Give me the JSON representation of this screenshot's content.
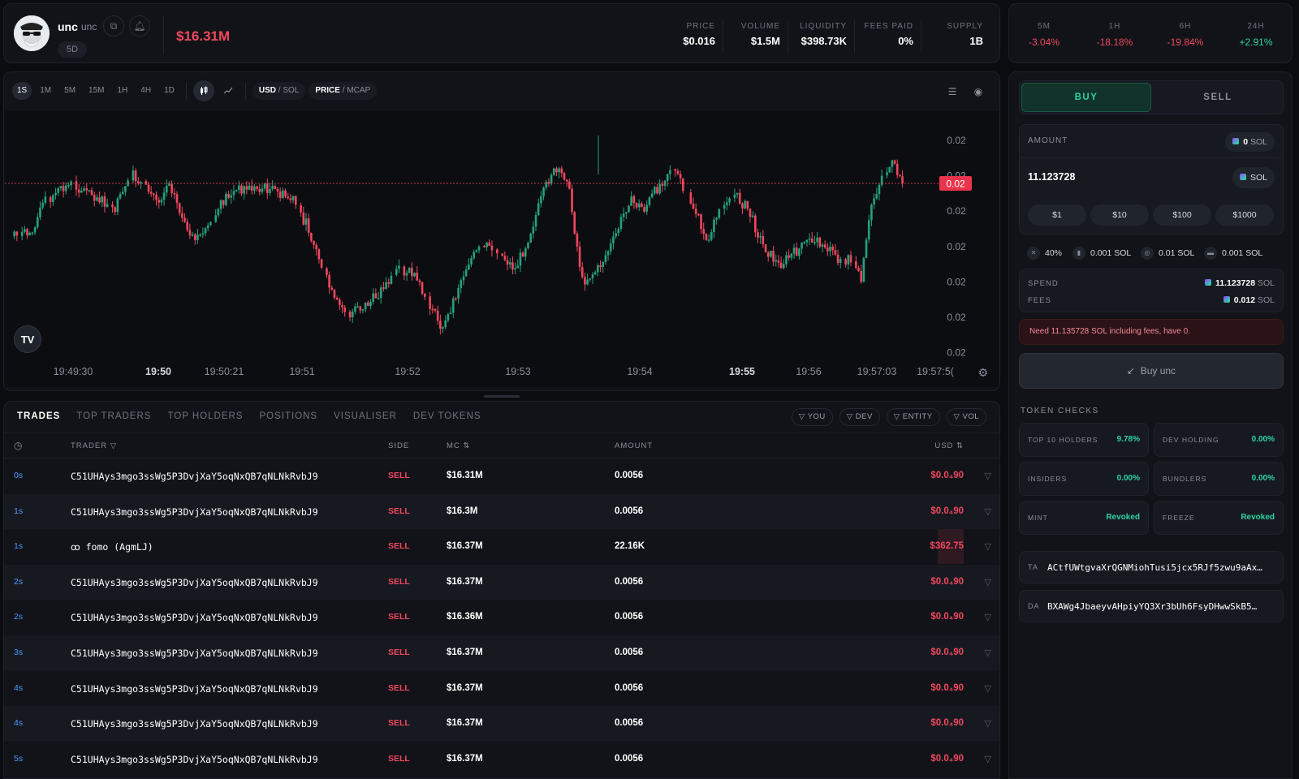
{
  "header": {
    "token_name": "unc",
    "token_ticker": "unc",
    "age": "5D",
    "market_cap": "$16.31M",
    "stats": [
      {
        "label": "PRICE",
        "value": "$0.016"
      },
      {
        "label": "VOLUME",
        "value": "$1.5M"
      },
      {
        "label": "LIQUIDITY",
        "value": "$398.73K"
      },
      {
        "label": "FEES PAID",
        "value": "0%"
      },
      {
        "label": "SUPPLY",
        "value": "1B"
      }
    ]
  },
  "changes": [
    {
      "label": "5M",
      "value": "-3.04%"
    },
    {
      "label": "1H",
      "value": "-18.18%"
    },
    {
      "label": "6H",
      "value": "-19.84%"
    },
    {
      "label": "24H",
      "value": "+2.91%"
    }
  ],
  "toolbar": {
    "timeframes": [
      "1S",
      "1M",
      "5M",
      "15M",
      "1H",
      "4H",
      "1D"
    ],
    "active_timeframe": "1S",
    "currency_active": "USD",
    "currency_alt": "SOL",
    "metric_active": "PRICE",
    "metric_alt": "MCAP"
  },
  "chart_data": {
    "type": "candlestick",
    "title": "",
    "y_tick_labels": [
      "0.02",
      "0.02",
      "0.02",
      "0.02",
      "0.02",
      "0.02",
      "0.02"
    ],
    "current_price_label": "0.02",
    "x_tick_labels": [
      "19:49:30",
      "19:50",
      "19:50:21",
      "19:51",
      "19:52",
      "19:53",
      "19:54",
      "19:55",
      "19:56",
      "19:57:03",
      "19:57:5("
    ],
    "x_bold_ticks": [
      "19:50",
      "19:55"
    ],
    "colors": {
      "up": "#26a17b",
      "down": "#f0475e",
      "price_line": "#f0475e"
    }
  },
  "trades": {
    "tabs": [
      "TRADES",
      "TOP TRADERS",
      "TOP HOLDERS",
      "POSITIONS",
      "VISUALISER",
      "DEV TOKENS"
    ],
    "active_tab": "TRADES",
    "filters": [
      "YOU",
      "DEV",
      "ENTITY",
      "VOL"
    ],
    "columns": {
      "trader": "TRADER",
      "side": "SIDE",
      "mc": "MC",
      "amount": "AMOUNT",
      "usd": "USD"
    },
    "rows": [
      {
        "time": "0s",
        "trader": "C51UHAys3mgo3ssWg5P3DvjXaY5oqNxQB7qNLNkRvbJ9",
        "side": "SELL",
        "mc": "$16.31M",
        "amount": "0.0056",
        "usd": "$0.0₄90"
      },
      {
        "time": "1s",
        "trader": "C51UHAys3mgo3ssWg5P3DvjXaY5oqNxQB7qNLNkRvbJ9",
        "side": "SELL",
        "mc": "$16.3M",
        "amount": "0.0056",
        "usd": "$0.0₄90"
      },
      {
        "time": "1s",
        "trader": "ꝏ fomo (AgmLJ)",
        "side": "SELL",
        "mc": "$16.37M",
        "amount": "22.16K",
        "usd": "$362.75"
      },
      {
        "time": "2s",
        "trader": "C51UHAys3mgo3ssWg5P3DvjXaY5oqNxQB7qNLNkRvbJ9",
        "side": "SELL",
        "mc": "$16.37M",
        "amount": "0.0056",
        "usd": "$0.0₄90"
      },
      {
        "time": "2s",
        "trader": "C51UHAys3mgo3ssWg5P3DvjXaY5oqNxQB7qNLNkRvbJ9",
        "side": "SELL",
        "mc": "$16.36M",
        "amount": "0.0056",
        "usd": "$0.0₄90"
      },
      {
        "time": "3s",
        "trader": "C51UHAys3mgo3ssWg5P3DvjXaY5oqNxQB7qNLNkRvbJ9",
        "side": "SELL",
        "mc": "$16.37M",
        "amount": "0.0056",
        "usd": "$0.0₄90"
      },
      {
        "time": "4s",
        "trader": "C51UHAys3mgo3ssWg5P3DvjXaY5oqNxQB7qNLNkRvbJ9",
        "side": "SELL",
        "mc": "$16.37M",
        "amount": "0.0056",
        "usd": "$0.0₄90"
      },
      {
        "time": "4s",
        "trader": "C51UHAys3mgo3ssWg5P3DvjXaY5oqNxQB7qNLNkRvbJ9",
        "side": "SELL",
        "mc": "$16.37M",
        "amount": "0.0056",
        "usd": "$0.0₄90"
      },
      {
        "time": "5s",
        "trader": "C51UHAys3mgo3ssWg5P3DvjXaY5oqNxQB7qNLNkRvbJ9",
        "side": "SELL",
        "mc": "$16.37M",
        "amount": "0.0056",
        "usd": "$0.0₄90"
      }
    ]
  },
  "trade_panel": {
    "buy_label": "BUY",
    "sell_label": "SELL",
    "amount_label": "AMOUNT",
    "balance_value": "0",
    "balance_unit": "SOL",
    "amount_value": "11.123728",
    "amount_unit": "SOL",
    "presets": [
      "$1",
      "$10",
      "$100",
      "$1000"
    ],
    "slippage": "40%",
    "priority_fee": "0.001 SOL",
    "tip": "0.01 SOL",
    "bribe": "0.001 SOL",
    "spend_label": "SPEND",
    "spend_value": "11.123728",
    "spend_unit": "SOL",
    "fees_label": "FEES",
    "fees_value": "0.012",
    "fees_unit": "SOL",
    "error": "Need 11.135728 SOL including fees, have 0.",
    "buy_button": "Buy unc"
  },
  "token_checks": {
    "title": "TOKEN CHECKS",
    "items": [
      {
        "label": "TOP 10 HOLDERS",
        "value": "9.78%"
      },
      {
        "label": "DEV HOLDING",
        "value": "0.00%"
      },
      {
        "label": "INSIDERS",
        "value": "0.00%"
      },
      {
        "label": "BUNDLERS",
        "value": "0.00%"
      },
      {
        "label": "MINT",
        "value": "Revoked"
      },
      {
        "label": "FREEZE",
        "value": "Revoked"
      }
    ],
    "ta_label": "TA",
    "ta_value": "ACtfUWtgvaXrQGNMiohTusi5jcx5RJf5zwu9aAx…",
    "da_label": "DA",
    "da_value": "BXAWg4JbaeyvAHpiyYQ3Xr3bUh6FsyDHwwSkB5…"
  }
}
